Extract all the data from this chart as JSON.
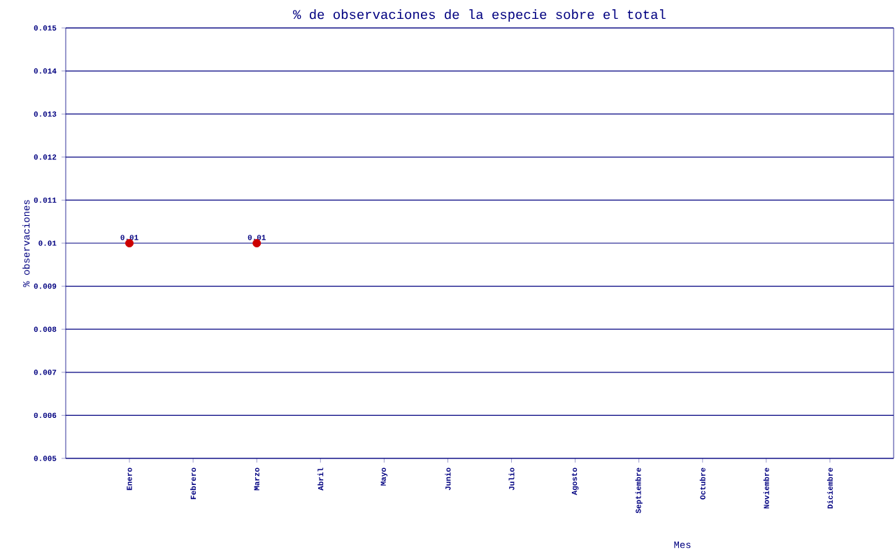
{
  "chart_data": {
    "type": "scatter",
    "title": "% de observaciones de la especie sobre el total",
    "xlabel": "Mes",
    "ylabel": "% observaciones",
    "categories": [
      "Enero",
      "Febrero",
      "Marzo",
      "Abril",
      "Mayo",
      "Junio",
      "Julio",
      "Agosto",
      "Septiembre",
      "Octubre",
      "Noviembre",
      "Diciembre"
    ],
    "series": [
      {
        "color": "#cc0000",
        "values": [
          0.01,
          null,
          0.01,
          null,
          null,
          null,
          null,
          null,
          null,
          null,
          null,
          null
        ]
      }
    ],
    "ylim": [
      0.005,
      0.015
    ],
    "yticks": [
      0.005,
      0.006,
      0.007,
      0.008,
      0.009,
      0.01,
      0.011,
      0.012,
      0.013,
      0.014,
      0.015
    ],
    "grid": "y",
    "marker": "circle",
    "data_labels": true
  }
}
